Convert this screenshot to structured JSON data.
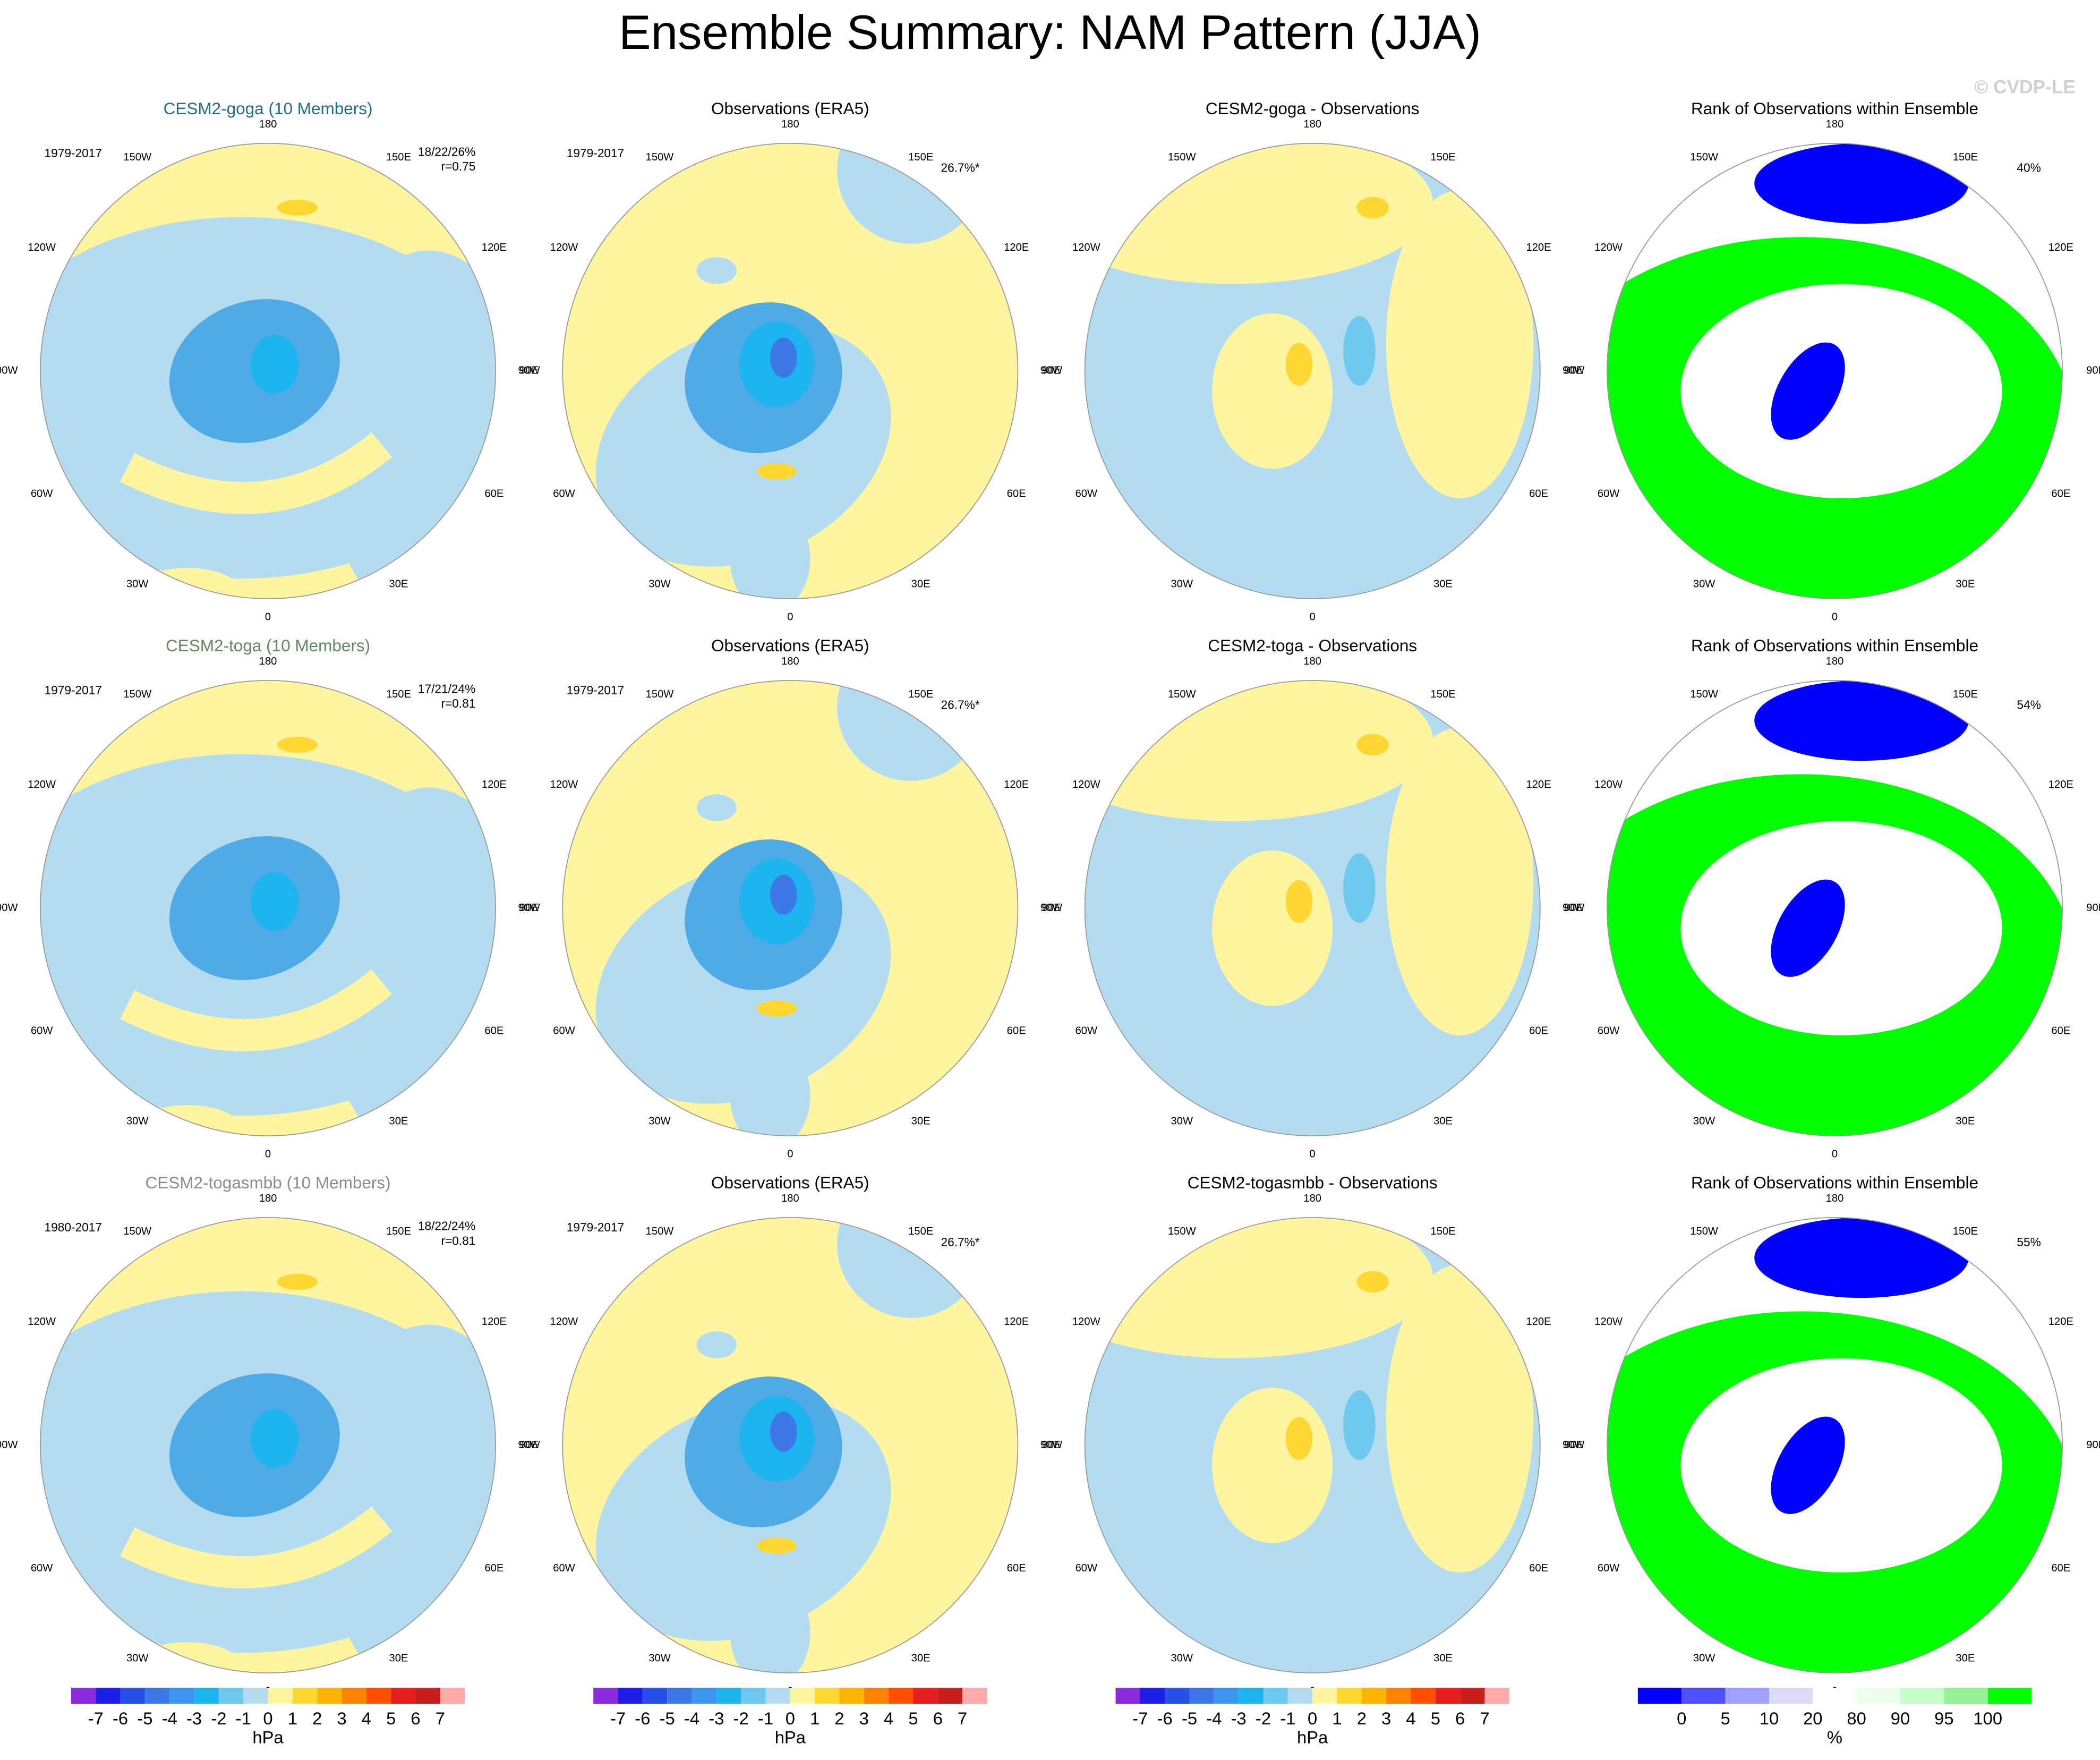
{
  "title": "Ensemble Summary: NAM Pattern (JJA)",
  "watermark": "© CVDP-LE",
  "lon_labels": [
    "180",
    "150E",
    "120E",
    "90E",
    "60E",
    "30E",
    "0",
    "30W",
    "60W",
    "90W",
    "120W",
    "150W"
  ],
  "rows": [
    {
      "panels": [
        {
          "title": "CESM2-goga (10 Members)",
          "title_color": "#1f6e8c",
          "period": "1979-2017",
          "stats": [
            "18/22/26%",
            "r=0.75"
          ]
        },
        {
          "title": "Observations (ERA5)",
          "period": "1979-2017",
          "pct": "26.7%*"
        },
        {
          "title": "CESM2-goga - Observations"
        },
        {
          "title": "Rank of Observations within Ensemble",
          "pct": "40%"
        }
      ]
    },
    {
      "panels": [
        {
          "title": "CESM2-toga (10 Members)",
          "title_color": "#5f8a5f",
          "period": "1979-2017",
          "stats": [
            "17/21/24%",
            "r=0.81"
          ]
        },
        {
          "title": "Observations (ERA5)",
          "period": "1979-2017",
          "pct": "26.7%*"
        },
        {
          "title": "CESM2-toga - Observations"
        },
        {
          "title": "Rank of Observations within Ensemble",
          "pct": "54%"
        }
      ]
    },
    {
      "panels": [
        {
          "title": "CESM2-togasmbb (10 Members)",
          "title_color": "#8c8c8c",
          "period": "1980-2017",
          "stats": [
            "18/22/24%",
            "r=0.81"
          ]
        },
        {
          "title": "Observations (ERA5)",
          "period": "1979-2017",
          "pct": "26.7%*"
        },
        {
          "title": "CESM2-togasmbb - Observations"
        },
        {
          "title": "Rank of Observations within Ensemble",
          "pct": "55%"
        }
      ]
    }
  ],
  "colorbars": [
    {
      "labels": [
        -7,
        -6,
        -5,
        -4,
        -3,
        -2,
        -1,
        0,
        1,
        2,
        3,
        4,
        5,
        6,
        7
      ],
      "units": "hPa",
      "colors": [
        "#8a2be2",
        "#1e1ee6",
        "#2850e6",
        "#3c78e6",
        "#3c96f0",
        "#1eb4f0",
        "#6ec8f0",
        "#b4dcf0",
        "#fff5a0",
        "#ffd732",
        "#ffb400",
        "#ff8200",
        "#ff5000",
        "#e61e1e",
        "#c81e1e",
        "#ffaaaa"
      ]
    },
    {
      "labels": [
        -7,
        -6,
        -5,
        -4,
        -3,
        -2,
        -1,
        0,
        1,
        2,
        3,
        4,
        5,
        6,
        7
      ],
      "units": "hPa",
      "colors": [
        "#8a2be2",
        "#1e1ee6",
        "#2850e6",
        "#3c78e6",
        "#3c96f0",
        "#1eb4f0",
        "#6ec8f0",
        "#b4dcf0",
        "#fff5a0",
        "#ffd732",
        "#ffb400",
        "#ff8200",
        "#ff5000",
        "#e61e1e",
        "#c81e1e",
        "#ffaaaa"
      ]
    },
    {
      "labels": [
        -7,
        -6,
        -5,
        -4,
        -3,
        -2,
        -1,
        0,
        1,
        2,
        3,
        4,
        5,
        6,
        7
      ],
      "units": "hPa",
      "colors": [
        "#8a2be2",
        "#1e1ee6",
        "#2850e6",
        "#3c78e6",
        "#3c96f0",
        "#1eb4f0",
        "#6ec8f0",
        "#b4dcf0",
        "#fff5a0",
        "#ffd732",
        "#ffb400",
        "#ff8200",
        "#ff5000",
        "#e61e1e",
        "#c81e1e",
        "#ffaaaa"
      ]
    },
    {
      "labels": [
        0,
        5,
        10,
        20,
        80,
        90,
        95,
        100
      ],
      "units": "%",
      "colors": [
        "#0000ff",
        "#5050ff",
        "#a0a0ff",
        "#dcdcfa",
        "#ffffff",
        "#ebffeb",
        "#c8ffc8",
        "#96f096",
        "#00ff00"
      ]
    }
  ]
}
